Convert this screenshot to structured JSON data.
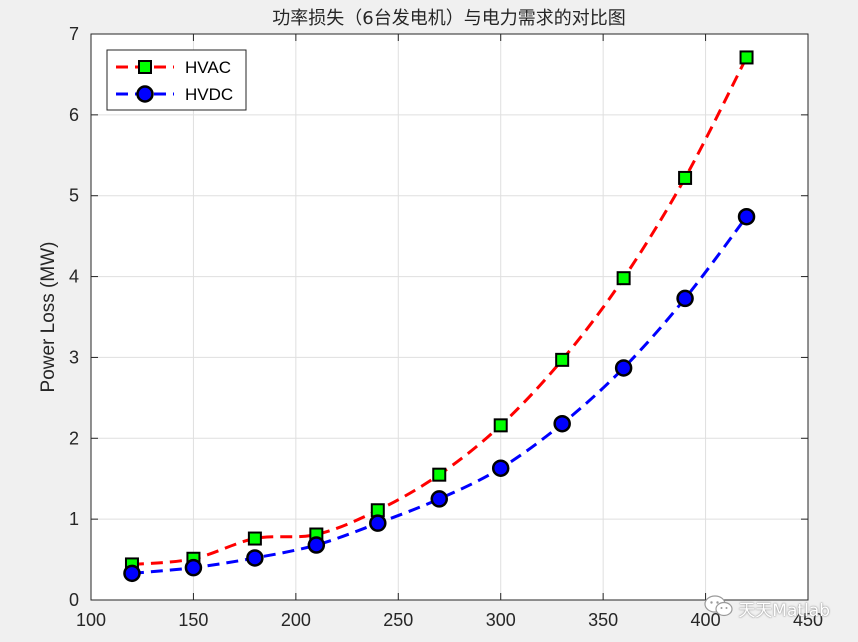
{
  "chart_data": {
    "type": "line",
    "title": "功率损失（6台发电机）与电力需求的对比图",
    "xlabel": "",
    "ylabel": "Power Loss (MW)",
    "xlim": [
      100,
      450
    ],
    "ylim": [
      0,
      7
    ],
    "xticks": [
      100,
      150,
      200,
      250,
      300,
      350,
      400,
      450
    ],
    "yticks": [
      0,
      1,
      2,
      3,
      4,
      5,
      6,
      7
    ],
    "grid": true,
    "legend_position": "top-left",
    "x": [
      120,
      150,
      180,
      210,
      240,
      270,
      300,
      330,
      360,
      390,
      420
    ],
    "series": [
      {
        "name": "HVAC",
        "values": [
          0.44,
          0.51,
          0.76,
          0.81,
          1.11,
          1.55,
          2.16,
          2.97,
          3.98,
          5.22,
          6.71
        ],
        "line_color": "#ff0000",
        "marker": "square",
        "marker_fill": "#00ff00"
      },
      {
        "name": "HVDC",
        "values": [
          0.33,
          0.4,
          0.52,
          0.68,
          0.95,
          1.25,
          1.63,
          2.18,
          2.87,
          3.73,
          4.74
        ],
        "line_color": "#0000ff",
        "marker": "circle",
        "marker_fill": "#0000ff"
      }
    ]
  },
  "watermark": {
    "text": "天天Matlab",
    "icon": "wechat-icon"
  }
}
